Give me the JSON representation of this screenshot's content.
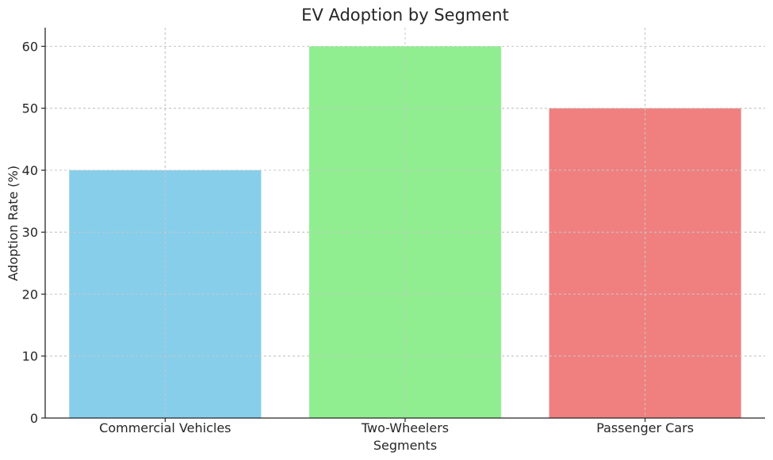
{
  "chart_data": {
    "type": "bar",
    "title": "EV Adoption by Segment",
    "xlabel": "Segments",
    "ylabel": "Adoption Rate (%)",
    "categories": [
      "Commercial Vehicles",
      "Two-Wheelers",
      "Passenger Cars"
    ],
    "values": [
      40,
      60,
      50
    ],
    "colors": [
      "#87ceeb",
      "#90ee90",
      "#f08080"
    ],
    "ylim": [
      0,
      63
    ],
    "yticks": [
      0,
      10,
      20,
      30,
      40,
      50,
      60
    ],
    "grid": true
  }
}
